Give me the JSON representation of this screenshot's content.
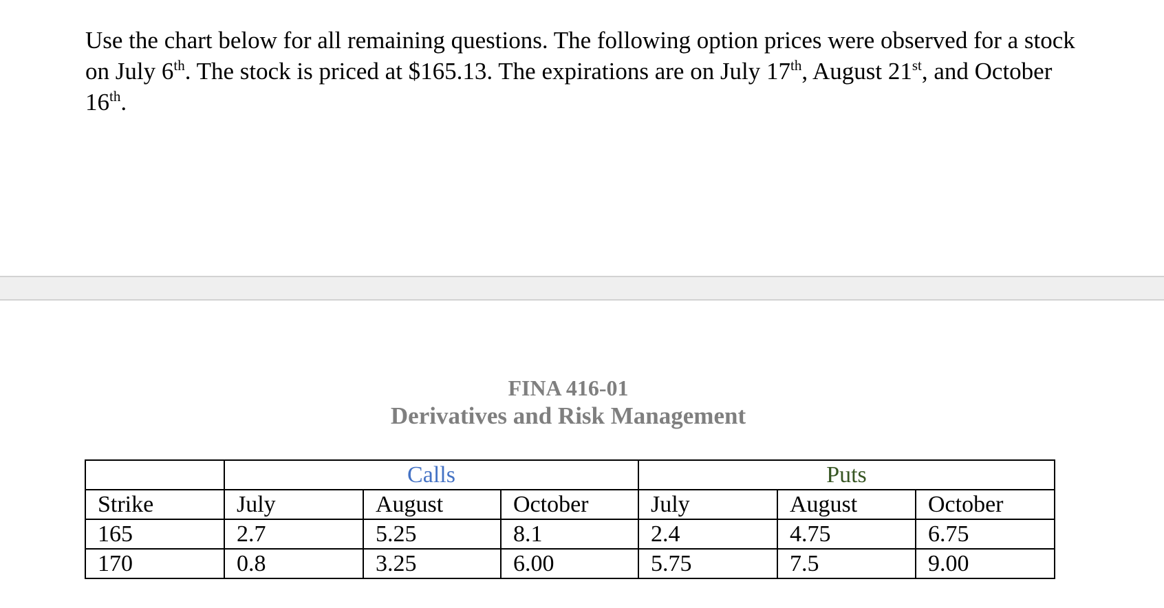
{
  "intro": {
    "p1": "Use the chart below for all remaining questions. The following option prices were observed for a stock on July 6",
    "sup1": "th",
    "p2": ". The stock is priced at $165.13. The expirations are on July 17",
    "sup2": "th",
    "p3": ", August 21",
    "sup3": "st",
    "p4": ", and October 16",
    "sup4": "th",
    "p5": "."
  },
  "heading": {
    "course": "FINA 416-01",
    "subtitle": "Derivatives and Risk Management"
  },
  "table": {
    "calls_label": "Calls",
    "puts_label": "Puts",
    "columns": [
      "Strike",
      "July",
      "August",
      "October",
      "July",
      "August",
      "October"
    ],
    "rows": [
      [
        "165",
        "2.7",
        "5.25",
        "8.1",
        "2.4",
        "4.75",
        "6.75"
      ],
      [
        "170",
        "0.8",
        "3.25",
        "6.00",
        "5.75",
        "7.5",
        "9.00"
      ]
    ]
  },
  "colors": {
    "calls": "#4472c4",
    "puts": "#375623",
    "heading": "#7f7f7f"
  }
}
